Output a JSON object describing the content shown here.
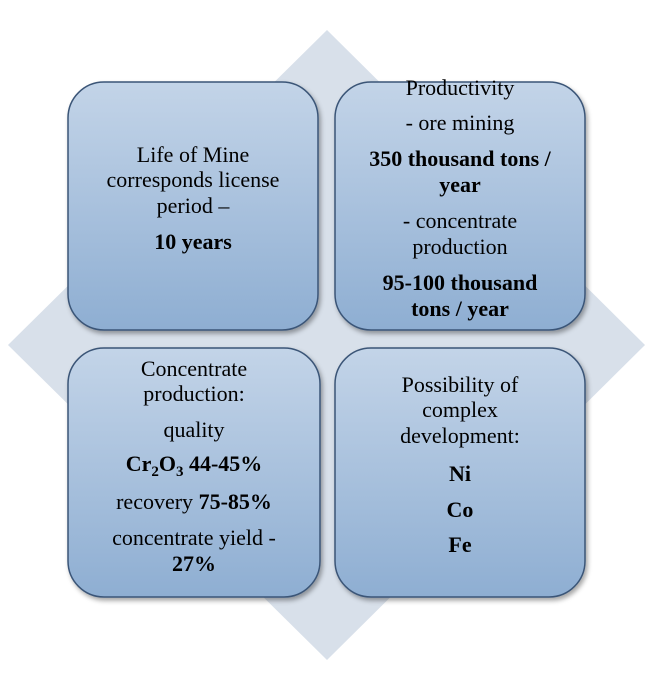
{
  "boxes": [
    {
      "lines": [
        [
          {
            "text": "Life of Mine"
          }
        ],
        [
          {
            "text": "corresponds license"
          }
        ],
        [
          {
            "text": "period –"
          }
        ],
        [
          {
            "text": "10 years",
            "style": "bold"
          }
        ]
      ]
    },
    {
      "lines": [
        [
          {
            "text": "Productivity"
          }
        ],
        [
          {
            "text": "- ore mining"
          }
        ],
        [
          {
            "text": "350 thousand tons /",
            "style": "bold"
          }
        ],
        [
          {
            "text": "year",
            "style": "bold"
          }
        ],
        [
          {
            "text": "- concentrate"
          }
        ],
        [
          {
            "text": "production"
          }
        ],
        [
          {
            "text": "95-100 thousand",
            "style": "bold"
          }
        ],
        [
          {
            "text": "tons / year",
            "style": "bold"
          }
        ]
      ]
    },
    {
      "lines": [
        [
          {
            "text": "Concentrate"
          }
        ],
        [
          {
            "text": "production:"
          }
        ],
        [
          {
            "text": "quality"
          }
        ],
        [
          {
            "text": "Cr",
            "style": "bold"
          },
          {
            "text": "2",
            "style": "bold-sub"
          },
          {
            "text": "O",
            "style": "bold"
          },
          {
            "text": "3",
            "style": "bold-sub"
          },
          {
            "text": " 44-45%",
            "style": "bold"
          }
        ],
        [
          {
            "text": "recovery "
          },
          {
            "text": "75-85%",
            "style": "bold"
          }
        ],
        [
          {
            "text": "concentrate yield -"
          }
        ],
        [
          {
            "text": "27%",
            "style": "bold"
          }
        ]
      ]
    },
    {
      "lines": [
        [
          {
            "text": "Possibility of"
          }
        ],
        [
          {
            "text": "complex"
          }
        ],
        [
          {
            "text": "development:"
          }
        ],
        [
          {
            "text": "Ni",
            "style": "bold"
          }
        ],
        [
          {
            "text": "Co",
            "style": "bold"
          }
        ],
        [
          {
            "text": "Fe",
            "style": "bold"
          }
        ]
      ]
    }
  ]
}
